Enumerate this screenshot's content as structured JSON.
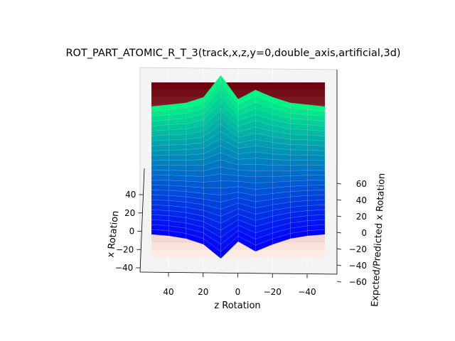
{
  "chart_data": {
    "type": "surface",
    "title": "ROT_PART_ATOMIC_R_T_3(track,x,z,y=0,double_axis,artificial,3d)",
    "xlabel": "z Rotation",
    "ylabel": "x Rotation",
    "zlabel": "Expcted/Predicted x Rotation",
    "z_axis_ticks": [
      40,
      20,
      0,
      -20,
      -40
    ],
    "x_axis_ticks": [
      40,
      20,
      0,
      -20,
      -40
    ],
    "vertical_axis_ticks": [
      60,
      40,
      20,
      0,
      -20,
      -40,
      -60
    ],
    "z_axis_tick_labels": [
      "40",
      "20",
      "0",
      "−20",
      "−40"
    ],
    "x_axis_tick_labels": [
      "40",
      "20",
      "0",
      "−20",
      "−40"
    ],
    "vertical_axis_tick_labels": [
      "60",
      "40",
      "20",
      "0",
      "−20",
      "−40",
      "−60"
    ],
    "z_rotation_range": [
      -50,
      50
    ],
    "x_rotation_range": [
      -45,
      55
    ],
    "value_range": [
      -60,
      70
    ],
    "z_rotation_samples": [
      -50,
      -40,
      -30,
      -20,
      -10,
      0,
      10,
      20,
      30,
      40,
      50
    ],
    "surfaces": [
      {
        "name": "expected",
        "colormap": "Reds",
        "z_by_x_rotation": [
          {
            "x_rotation": -45,
            "values": [
              -45,
              -45,
              -45,
              -45,
              -45,
              -45,
              -45,
              -45,
              -45,
              -45,
              -45
            ]
          },
          {
            "x_rotation": 55,
            "values": [
              55,
              55,
              55,
              55,
              55,
              55,
              55,
              55,
              55,
              55,
              55
            ]
          }
        ]
      },
      {
        "name": "predicted",
        "colormap": "winter",
        "front_edge_values": [
          -43,
          -44,
          -46,
          -50,
          -55,
          -48,
          -60,
          -50,
          -46,
          -44,
          -43
        ],
        "back_edge_values": [
          48,
          49,
          50,
          53,
          57,
          52,
          65,
          53,
          50,
          49,
          48
        ]
      }
    ],
    "grid": true,
    "legend": "none"
  }
}
